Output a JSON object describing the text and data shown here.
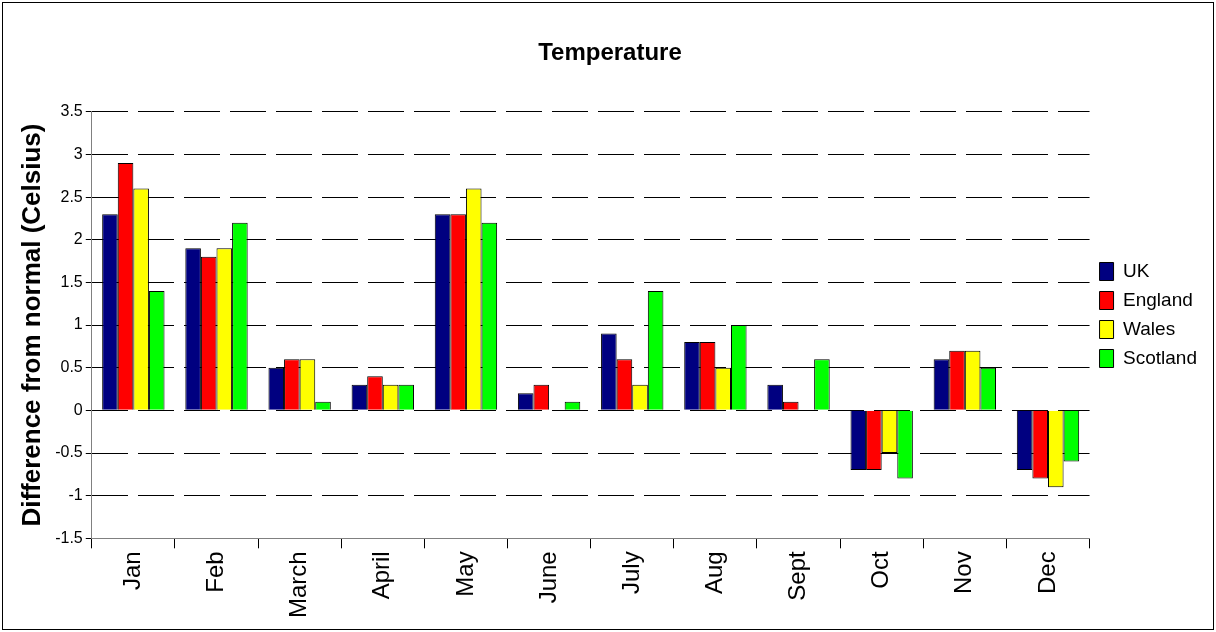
{
  "chart_data": {
    "type": "bar",
    "title": "Temperature",
    "ylabel": "Difference from normal (Celsius)",
    "categories": [
      "Jan",
      "Feb",
      "March",
      "April",
      "May",
      "June",
      "July",
      "Aug",
      "Sept",
      "Oct",
      "Nov",
      "Dec"
    ],
    "series": [
      {
        "name": "UK",
        "color": "#000080",
        "values": [
          2.3,
          1.9,
          0.5,
          0.3,
          2.3,
          0.2,
          0.9,
          0.8,
          0.3,
          -0.7,
          0.6,
          -0.7
        ]
      },
      {
        "name": "England",
        "color": "#ff0000",
        "values": [
          2.9,
          1.8,
          0.6,
          0.4,
          2.3,
          0.3,
          0.6,
          0.8,
          0.1,
          -0.7,
          0.7,
          -0.8
        ]
      },
      {
        "name": "Wales",
        "color": "#ffff00",
        "values": [
          2.6,
          1.9,
          0.6,
          0.3,
          2.6,
          0,
          0.3,
          0.5,
          0,
          -0.5,
          0.7,
          -0.9
        ]
      },
      {
        "name": "Scotland",
        "color": "#00ff00",
        "values": [
          1.4,
          2.2,
          0.1,
          0.3,
          2.2,
          0.1,
          1.4,
          1.0,
          0.6,
          -0.8,
          0.5,
          -0.6
        ]
      }
    ],
    "ylim": [
      -1.5,
      3.5
    ],
    "yticks": [
      -1.5,
      -1,
      -0.5,
      0,
      0.5,
      1,
      1.5,
      2,
      2.5,
      3,
      3.5
    ],
    "grid": "y",
    "legend": "right"
  }
}
